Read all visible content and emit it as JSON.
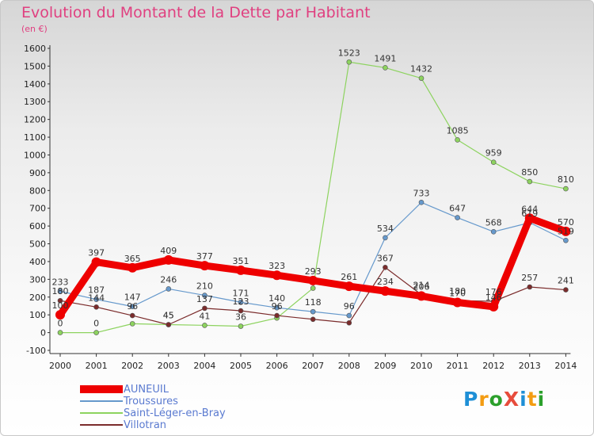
{
  "title": "Evolution du Montant de la Dette par Habitant",
  "subtitle": "(en €)",
  "logo": {
    "text": "ProXiti",
    "colors": [
      "#1e8fd6",
      "#f39c12",
      "#2ca02c",
      "#e74c3c",
      "#1e8fd6",
      "#f39c12",
      "#2ca02c"
    ]
  },
  "chart_data": {
    "type": "line",
    "x": [
      "2000",
      "2001",
      "2002",
      "2003",
      "2004",
      "2005",
      "2006",
      "2007",
      "2008",
      "2009",
      "2010",
      "2011",
      "2012",
      "2013",
      "2014"
    ],
    "ylim": [
      -100,
      1600
    ],
    "yticks": [
      -100,
      0,
      100,
      200,
      300,
      400,
      500,
      600,
      700,
      800,
      900,
      1000,
      1100,
      1200,
      1300,
      1400,
      1500,
      1600
    ],
    "grid": false,
    "legend_position": "bottom-left",
    "series": [
      {
        "name": "Saint-Léger-en-Bray",
        "color": "#8dd35f",
        "bold": false,
        "values": [
          0,
          0,
          50,
          45,
          41,
          36,
          82,
          250,
          1523,
          1491,
          1432,
          1085,
          959,
          850,
          810
        ],
        "labels": [
          "0",
          "0",
          "",
          "45",
          "41",
          "36",
          "",
          "",
          "1523",
          "1491",
          "1432",
          "1085",
          "959",
          "850",
          "810"
        ]
      },
      {
        "name": "Troussures",
        "color": "#6699cc",
        "bold": false,
        "values": [
          233,
          187,
          147,
          246,
          210,
          171,
          140,
          118,
          96,
          534,
          733,
          647,
          568,
          619,
          519
        ],
        "labels": [
          "233",
          "187",
          "147",
          "246",
          "210",
          "171",
          "140",
          "118",
          "96",
          "534",
          "733",
          "647",
          "568",
          "619",
          "519"
        ]
      },
      {
        "name": "Villotran",
        "color": "#7b2c2c",
        "bold": false,
        "values": [
          180,
          144,
          96,
          45,
          137,
          123,
          96,
          75,
          55,
          367,
          214,
          180,
          176,
          257,
          241
        ],
        "labels": [
          "180",
          "144",
          "96",
          "45",
          "137",
          "123",
          "96",
          "",
          "",
          "367",
          "214",
          "180",
          "176",
          "257",
          "241"
        ]
      },
      {
        "name": "AUNEUIL",
        "color": "#ee0000",
        "bold": true,
        "values": [
          100,
          397,
          365,
          409,
          377,
          351,
          323,
          293,
          261,
          234,
          206,
          170,
          146,
          644,
          570
        ],
        "labels": [
          "100",
          "397",
          "365",
          "409",
          "377",
          "351",
          "323",
          "293",
          "261",
          "234",
          "206",
          "170",
          "146",
          "644",
          "570"
        ]
      }
    ],
    "legend": [
      "AUNEUIL",
      "Troussures",
      "Saint-Léger-en-Bray",
      "Villotran"
    ]
  }
}
